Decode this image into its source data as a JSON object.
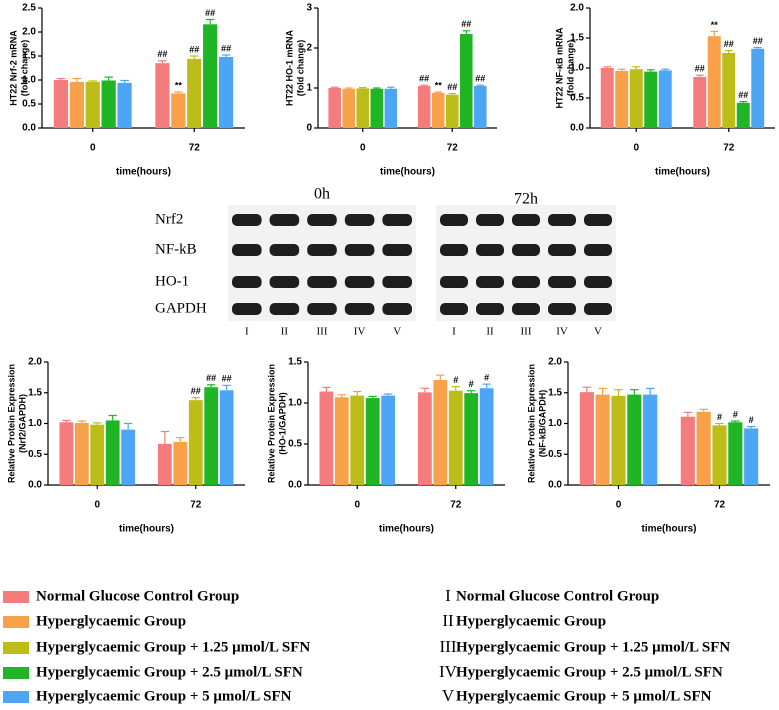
{
  "chart_data": [
    {
      "type": "bar",
      "ylabel": [
        "HT22 Nrf-2 mRNA",
        "(fold change)"
      ],
      "xlabel": "time(hours)",
      "categories": [
        "0",
        "72"
      ],
      "ylim": [
        0,
        2.5
      ],
      "yticks": [
        {
          "value": 0,
          "label": "0.0"
        },
        0.5,
        {
          "value": 1,
          "label": "1.0"
        },
        1.5,
        {
          "value": 2,
          "label": "2.0"
        },
        2.5
      ],
      "series": [
        {
          "color": "#f47c7c",
          "values": [
            1.0,
            1.35
          ],
          "errors": [
            0.03,
            0.05
          ],
          "marks": [
            null,
            "##"
          ]
        },
        {
          "color": "#f9a04a",
          "values": [
            0.96,
            0.72
          ],
          "errors": [
            0.07,
            0.03
          ],
          "marks": [
            null,
            "**"
          ]
        },
        {
          "color": "#bdbd1a",
          "values": [
            0.96,
            1.44
          ],
          "errors": [
            0.02,
            0.06
          ],
          "marks": [
            null,
            "##"
          ]
        },
        {
          "color": "#1fb524",
          "values": [
            0.99,
            2.16
          ],
          "errors": [
            0.07,
            0.1
          ],
          "marks": [
            null,
            "##"
          ]
        },
        {
          "color": "#4da6f5",
          "values": [
            0.94,
            1.48
          ],
          "errors": [
            0.05,
            0.04
          ],
          "marks": [
            null,
            "##"
          ]
        }
      ]
    },
    {
      "type": "bar",
      "ylabel": [
        "HT22 HO-1 mRNA",
        "(fold change)"
      ],
      "xlabel": "time(hours)",
      "categories": [
        "0",
        "72"
      ],
      "ylim": [
        0,
        3
      ],
      "yticks": [
        0,
        1,
        2,
        3
      ],
      "series": [
        {
          "color": "#f47c7c",
          "values": [
            1.0,
            1.05
          ],
          "errors": [
            0.02,
            0.02
          ],
          "marks": [
            null,
            "##"
          ]
        },
        {
          "color": "#f9a04a",
          "values": [
            0.98,
            0.88
          ],
          "errors": [
            0.02,
            0.02
          ],
          "marks": [
            null,
            "**"
          ]
        },
        {
          "color": "#bdbd1a",
          "values": [
            0.99,
            0.83
          ],
          "errors": [
            0.02,
            0.03
          ],
          "marks": [
            null,
            "##"
          ]
        },
        {
          "color": "#1fb524",
          "values": [
            0.98,
            2.35
          ],
          "errors": [
            0.02,
            0.08
          ],
          "marks": [
            null,
            "##"
          ]
        },
        {
          "color": "#4da6f5",
          "values": [
            0.98,
            1.05
          ],
          "errors": [
            0.04,
            0.02
          ],
          "marks": [
            null,
            "##"
          ]
        }
      ]
    },
    {
      "type": "bar",
      "ylabel": [
        "HT22 NF-κB mRNA",
        "(fold change)"
      ],
      "xlabel": "time(hours)",
      "categories": [
        "0",
        "72"
      ],
      "ylim": [
        0,
        2
      ],
      "yticks": [
        {
          "value": 0,
          "label": "0.0"
        },
        0.5,
        {
          "value": 1,
          "label": "1.0"
        },
        1.5,
        {
          "value": 2,
          "label": "2.0"
        }
      ],
      "series": [
        {
          "color": "#f47c7c",
          "values": [
            1.0,
            0.85
          ],
          "errors": [
            0.02,
            0.03
          ],
          "marks": [
            null,
            "##"
          ]
        },
        {
          "color": "#f9a04a",
          "values": [
            0.95,
            1.53
          ],
          "errors": [
            0.03,
            0.08
          ],
          "marks": [
            null,
            "**"
          ]
        },
        {
          "color": "#bdbd1a",
          "values": [
            0.98,
            1.25
          ],
          "errors": [
            0.04,
            0.04
          ],
          "marks": [
            null,
            "##"
          ]
        },
        {
          "color": "#1fb524",
          "values": [
            0.94,
            0.42
          ],
          "errors": [
            0.03,
            0.02
          ],
          "marks": [
            null,
            "##"
          ]
        },
        {
          "color": "#4da6f5",
          "values": [
            0.96,
            1.32
          ],
          "errors": [
            0.02,
            0.02
          ],
          "marks": [
            null,
            "##"
          ]
        }
      ]
    },
    {
      "type": "bar",
      "ylabel": [
        "Relative Protein Expression",
        "(Nrf2/GAPDH)"
      ],
      "xlabel": "time(hours)",
      "categories": [
        "0",
        "72"
      ],
      "ylim": [
        0,
        2
      ],
      "yticks": [
        {
          "value": 0,
          "label": "0.0"
        },
        0.5,
        {
          "value": 1,
          "label": "1.0"
        },
        1.5,
        {
          "value": 2,
          "label": "2.0"
        }
      ],
      "series": [
        {
          "color": "#f47c7c",
          "values": [
            1.02,
            0.67
          ],
          "errors": [
            0.03,
            0.2
          ],
          "marks": [
            null,
            null
          ]
        },
        {
          "color": "#f9a04a",
          "values": [
            1.01,
            0.7
          ],
          "errors": [
            0.03,
            0.07
          ],
          "marks": [
            null,
            null
          ]
        },
        {
          "color": "#bdbd1a",
          "values": [
            0.98,
            1.38
          ],
          "errors": [
            0.03,
            0.04
          ],
          "marks": [
            null,
            "##"
          ]
        },
        {
          "color": "#1fb524",
          "values": [
            1.05,
            1.59
          ],
          "errors": [
            0.08,
            0.04
          ],
          "marks": [
            null,
            "##"
          ]
        },
        {
          "color": "#4da6f5",
          "values": [
            0.9,
            1.54
          ],
          "errors": [
            0.1,
            0.08
          ],
          "marks": [
            null,
            "##"
          ]
        }
      ]
    },
    {
      "type": "bar",
      "ylabel": [
        "Relative Protein Expression",
        "(HO-1/GAPDH)"
      ],
      "xlabel": "time(hours)",
      "categories": [
        "0",
        "72"
      ],
      "ylim": [
        0,
        1.5
      ],
      "yticks": [
        {
          "value": 0,
          "label": "0.0"
        },
        0.5,
        {
          "value": 1,
          "label": "1.0"
        },
        1.5
      ],
      "series": [
        {
          "color": "#f47c7c",
          "values": [
            1.14,
            1.13
          ],
          "errors": [
            0.05,
            0.05
          ],
          "marks": [
            null,
            null
          ]
        },
        {
          "color": "#f9a04a",
          "values": [
            1.07,
            1.28
          ],
          "errors": [
            0.03,
            0.06
          ],
          "marks": [
            null,
            null
          ]
        },
        {
          "color": "#bdbd1a",
          "values": [
            1.09,
            1.15
          ],
          "errors": [
            0.05,
            0.05
          ],
          "marks": [
            null,
            "#"
          ]
        },
        {
          "color": "#1fb524",
          "values": [
            1.06,
            1.12
          ],
          "errors": [
            0.02,
            0.03
          ],
          "marks": [
            null,
            "#"
          ]
        },
        {
          "color": "#4da6f5",
          "values": [
            1.09,
            1.18
          ],
          "errors": [
            0.02,
            0.05
          ],
          "marks": [
            null,
            "#"
          ]
        }
      ]
    },
    {
      "type": "bar",
      "ylabel": [
        "Relative Protein Expression",
        "(NF-kB/GAPDH)"
      ],
      "xlabel": "time(hours)",
      "categories": [
        "0",
        "72"
      ],
      "ylim": [
        0,
        2
      ],
      "yticks": [
        {
          "value": 0,
          "label": "0.0"
        },
        0.5,
        {
          "value": 1,
          "label": "1.0"
        },
        1.5,
        {
          "value": 2,
          "label": "2.0"
        }
      ],
      "series": [
        {
          "color": "#f47c7c",
          "values": [
            1.51,
            1.11
          ],
          "errors": [
            0.08,
            0.07
          ],
          "marks": [
            null,
            null
          ]
        },
        {
          "color": "#f9a04a",
          "values": [
            1.47,
            1.19
          ],
          "errors": [
            0.1,
            0.04
          ],
          "marks": [
            null,
            null
          ]
        },
        {
          "color": "#bdbd1a",
          "values": [
            1.45,
            0.97
          ],
          "errors": [
            0.1,
            0.03
          ],
          "marks": [
            null,
            "#"
          ]
        },
        {
          "color": "#1fb524",
          "values": [
            1.47,
            1.02
          ],
          "errors": [
            0.08,
            0.02
          ],
          "marks": [
            null,
            "#"
          ]
        },
        {
          "color": "#4da6f5",
          "values": [
            1.47,
            0.92
          ],
          "errors": [
            0.1,
            0.03
          ],
          "marks": [
            null,
            "#"
          ]
        }
      ]
    }
  ],
  "blot": {
    "timepoints": [
      "0h",
      "72h"
    ],
    "rows": [
      "Nrf2",
      "NF-kB",
      "HO-1",
      "GAPDH"
    ],
    "lanes": [
      "I",
      "II",
      "III",
      "IV",
      "V"
    ]
  },
  "legend": [
    {
      "name": "Normal Glucose Control Group",
      "color": "#f47c7c"
    },
    {
      "name": "Hyperglycaemic Group",
      "color": "#f9a04a"
    },
    {
      "name": "Hyperglycaemic Group + 1.25 μmol/L SFN",
      "color": "#bdbd1a"
    },
    {
      "name": "Hyperglycaemic Group + 2.5 μmol/L SFN",
      "color": "#1fb524"
    },
    {
      "name": "Hyperglycaemic Group + 5 μmol/L SFN",
      "color": "#4da6f5"
    }
  ]
}
